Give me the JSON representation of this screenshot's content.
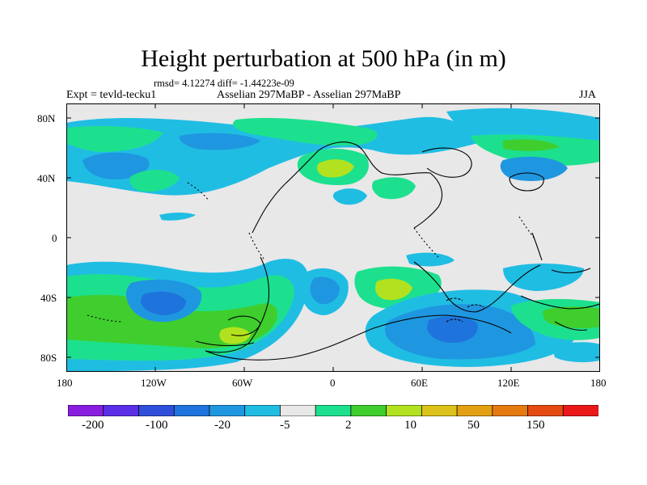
{
  "title": "Height perturbation at 500 hPa (in m)",
  "stats": "rmsd= 4.12274 diff= -1.44223e-09",
  "left_label": "Expt = tevld-tecku1",
  "center_label": "Asselian 297MaBP - Asselian 297MaBP",
  "right_label": "JJA",
  "lat_ticks": [
    "80N",
    "40N",
    "0",
    "40S",
    "80S"
  ],
  "lon_ticks": [
    "180",
    "120W",
    "60W",
    "0",
    "60E",
    "120E",
    "180"
  ],
  "colorbar": {
    "labels": [
      "-200",
      "-100",
      "-20",
      "-5",
      "2",
      "10",
      "50",
      "150"
    ],
    "colors": [
      "#8a1ee0",
      "#5a2ee6",
      "#2f4fdb",
      "#1f73dc",
      "#1f97e0",
      "#20bde3",
      "#e8e8e8",
      "#1de08e",
      "#3fce2e",
      "#b2e21f",
      "#dcc21a",
      "#e4a014",
      "#e47a10",
      "#e54a10",
      "#ea1818"
    ]
  },
  "palette": {
    "background": "#e8e8e8",
    "cyan": "#20bde3",
    "blue": "#1f97e0",
    "deep_blue": "#1f73dc",
    "teal_green": "#1de08e",
    "green": "#3fce2e",
    "yellow_green": "#b2e21f"
  }
}
